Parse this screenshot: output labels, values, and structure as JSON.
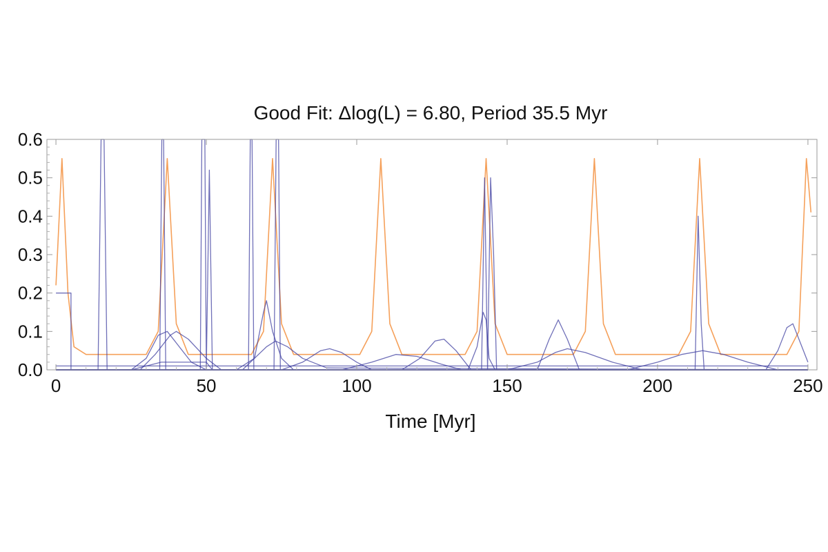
{
  "chart_data": {
    "type": "line",
    "title": "Good Fit: Δlog(L) = 6.80, Period 35.5 Myr",
    "xlabel": "Time [Myr]",
    "ylabel": "",
    "xlim": [
      -3,
      253
    ],
    "ylim": [
      0,
      0.6
    ],
    "x_ticks": [
      "0",
      "50",
      "100",
      "150",
      "200",
      "250"
    ],
    "y_ticks": [
      "0.0",
      "0.1",
      "0.2",
      "0.3",
      "0.4",
      "0.5",
      "0.6"
    ],
    "grid": false,
    "legend": "none",
    "colors": {
      "periodic": "#F5A05A",
      "events": "#3F3FA0"
    },
    "series": [
      {
        "style": "periodic",
        "x": [
          0,
          2,
          4,
          6,
          10,
          30,
          34,
          37,
          40,
          44,
          65,
          69,
          72,
          75,
          79,
          101,
          105,
          108,
          111,
          115,
          136,
          140,
          143,
          146,
          150,
          172,
          176,
          179,
          182,
          186,
          207,
          211,
          214,
          217,
          221,
          243,
          247,
          249.5,
          251
        ],
        "y": [
          0.22,
          0.55,
          0.2,
          0.06,
          0.04,
          0.04,
          0.1,
          0.55,
          0.12,
          0.04,
          0.04,
          0.1,
          0.55,
          0.12,
          0.04,
          0.04,
          0.1,
          0.55,
          0.12,
          0.04,
          0.04,
          0.1,
          0.55,
          0.12,
          0.04,
          0.04,
          0.1,
          0.55,
          0.12,
          0.04,
          0.04,
          0.1,
          0.55,
          0.12,
          0.04,
          0.04,
          0.1,
          0.55,
          0.41
        ]
      },
      {
        "style": "event",
        "x": [
          0,
          5,
          5,
          14,
          15,
          16,
          17,
          250
        ],
        "y": [
          0.2,
          0.2,
          0.0,
          0.0,
          0.6,
          0.6,
          0.0,
          0.0
        ]
      },
      {
        "style": "event",
        "x": [
          0,
          34.5,
          35.2,
          35.8,
          36.5,
          250
        ],
        "y": [
          0.0,
          0.0,
          0.6,
          0.6,
          0.0,
          0.0
        ]
      },
      {
        "style": "event",
        "x": [
          0,
          48,
          48.5,
          49.5,
          50,
          51,
          52,
          250
        ],
        "y": [
          0.0,
          0.0,
          0.6,
          0.6,
          0.0,
          0.52,
          0.0,
          0.0
        ]
      },
      {
        "style": "event",
        "x": [
          0,
          64,
          64.6,
          65.2,
          65.8,
          250
        ],
        "y": [
          0.0,
          0.0,
          0.6,
          0.6,
          0.0,
          0.0
        ]
      },
      {
        "style": "event",
        "x": [
          0,
          72.5,
          73.2,
          74,
          74.6,
          250
        ],
        "y": [
          0.0,
          0.0,
          0.6,
          0.6,
          0.0,
          0.0
        ]
      },
      {
        "style": "event",
        "x": [
          0,
          141.5,
          142.5,
          143.5,
          144.5,
          145.5,
          146.5,
          250
        ],
        "y": [
          0.0,
          0.0,
          0.5,
          0.0,
          0.5,
          0.3,
          0.0,
          0.0
        ]
      },
      {
        "style": "event",
        "x": [
          0,
          212.5,
          213.5,
          214.5,
          215.5,
          250
        ],
        "y": [
          0.0,
          0.0,
          0.4,
          0.12,
          0.0,
          0.0
        ]
      },
      {
        "style": "event",
        "x": [
          0,
          25,
          30,
          34,
          37,
          40,
          45,
          50,
          250
        ],
        "y": [
          0.0,
          0.0,
          0.03,
          0.09,
          0.1,
          0.07,
          0.02,
          0.0,
          0.0
        ]
      },
      {
        "style": "event",
        "x": [
          0,
          28,
          33,
          38,
          40,
          44,
          50,
          55,
          250
        ],
        "y": [
          0.0,
          0.0,
          0.04,
          0.09,
          0.1,
          0.08,
          0.03,
          0.0,
          0.0
        ]
      },
      {
        "style": "event",
        "x": [
          0,
          62,
          66,
          69,
          70,
          72,
          75,
          79,
          250
        ],
        "y": [
          0.0,
          0.0,
          0.03,
          0.15,
          0.18,
          0.1,
          0.03,
          0.0,
          0.0
        ]
      },
      {
        "style": "event",
        "x": [
          0,
          60,
          66,
          70,
          73,
          77,
          82,
          90,
          250
        ],
        "y": [
          0.0,
          0.0,
          0.03,
          0.06,
          0.075,
          0.06,
          0.03,
          0.005,
          0.0
        ]
      },
      {
        "style": "event",
        "x": [
          0,
          75,
          82,
          88,
          91,
          95,
          100,
          105,
          250
        ],
        "y": [
          0.0,
          0.0,
          0.02,
          0.05,
          0.055,
          0.045,
          0.02,
          0.0,
          0.0
        ]
      },
      {
        "style": "event",
        "x": [
          0,
          95,
          105,
          113,
          120,
          128,
          135,
          250
        ],
        "y": [
          0.0,
          0.0,
          0.02,
          0.04,
          0.035,
          0.015,
          0.0,
          0.0
        ]
      },
      {
        "style": "event",
        "x": [
          0,
          115,
          121,
          126,
          129,
          133,
          138,
          250
        ],
        "y": [
          0.0,
          0.0,
          0.03,
          0.075,
          0.08,
          0.05,
          0.0,
          0.0
        ]
      },
      {
        "style": "event",
        "x": [
          0,
          137,
          140,
          142,
          143,
          144,
          146,
          250
        ],
        "y": [
          0.0,
          0.0,
          0.06,
          0.15,
          0.13,
          0.03,
          0.0,
          0.0
        ]
      },
      {
        "style": "event",
        "x": [
          0,
          160,
          164,
          167,
          170,
          174,
          250
        ],
        "y": [
          0.0,
          0.0,
          0.08,
          0.13,
          0.08,
          0.0,
          0.0
        ]
      },
      {
        "style": "event",
        "x": [
          0,
          150,
          160,
          166,
          170,
          176,
          185,
          195,
          250
        ],
        "y": [
          0.0,
          0.0,
          0.02,
          0.045,
          0.055,
          0.045,
          0.02,
          0.0,
          0.0
        ]
      },
      {
        "style": "event",
        "x": [
          0,
          190,
          200,
          208,
          215,
          222,
          230,
          240,
          250
        ],
        "y": [
          0.0,
          0.0,
          0.02,
          0.04,
          0.05,
          0.04,
          0.02,
          0.0,
          0.0
        ]
      },
      {
        "style": "event",
        "x": [
          0,
          236,
          240,
          243,
          245,
          248,
          250
        ],
        "y": [
          0.0,
          0.0,
          0.05,
          0.11,
          0.12,
          0.06,
          0.02
        ]
      },
      {
        "style": "event",
        "x": [
          0,
          25,
          35,
          50,
          52,
          250
        ],
        "y": [
          0.0,
          0.0,
          0.02,
          0.02,
          0.0,
          0.0
        ]
      },
      {
        "style": "event",
        "x": [
          0,
          250
        ],
        "y": [
          0.01,
          0.01
        ]
      }
    ]
  }
}
